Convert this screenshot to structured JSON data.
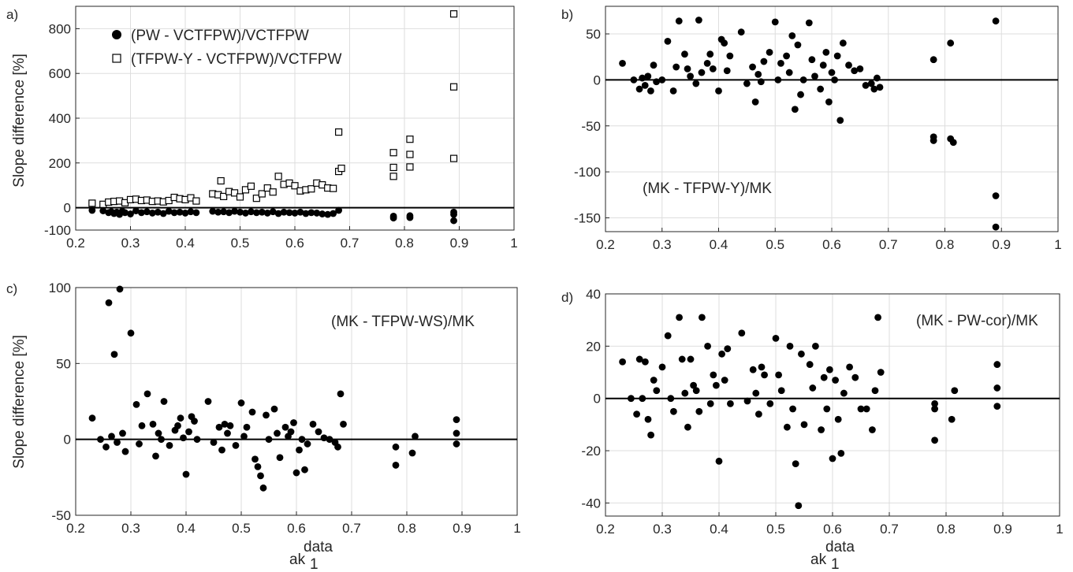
{
  "chart_data": [
    {
      "panel": "a)",
      "type": "scatter",
      "ylabel": "Slope difference [%]",
      "xlabel": "",
      "xlim": [
        0.2,
        1
      ],
      "ylim": [
        -100,
        900
      ],
      "xticks": [
        "0.2",
        "0.3",
        "0.4",
        "0.5",
        "0.6",
        "0.7",
        "0.8",
        "0.9",
        "1"
      ],
      "yticks": [
        "-100",
        "0",
        "200",
        "400",
        "600",
        "800"
      ],
      "grid": true,
      "zero_line": true,
      "legend_position": "top-left",
      "series": [
        {
          "name": "(PW - VCTFPW)/VCTFPW",
          "marker": "filled-circle",
          "x": [
            0.23,
            0.25,
            0.26,
            0.265,
            0.27,
            0.275,
            0.28,
            0.285,
            0.29,
            0.3,
            0.31,
            0.32,
            0.33,
            0.34,
            0.35,
            0.36,
            0.37,
            0.38,
            0.39,
            0.4,
            0.41,
            0.42,
            0.45,
            0.46,
            0.47,
            0.48,
            0.49,
            0.5,
            0.51,
            0.52,
            0.53,
            0.54,
            0.55,
            0.56,
            0.57,
            0.58,
            0.59,
            0.6,
            0.61,
            0.62,
            0.63,
            0.64,
            0.65,
            0.66,
            0.67,
            0.68,
            0.78,
            0.78,
            0.81,
            0.81,
            0.89,
            0.89,
            0.89
          ],
          "y": [
            -12,
            -14,
            -22,
            -18,
            -26,
            -20,
            -30,
            -16,
            -22,
            -28,
            -14,
            -22,
            -18,
            -24,
            -20,
            -26,
            -16,
            -22,
            -20,
            -24,
            -18,
            -22,
            -16,
            -20,
            -18,
            -22,
            -16,
            -20,
            -24,
            -18,
            -22,
            -20,
            -24,
            -18,
            -26,
            -20,
            -22,
            -24,
            -20,
            -26,
            -22,
            -24,
            -28,
            -30,
            -26,
            -12,
            -38,
            -46,
            -36,
            -44,
            -20,
            -30,
            -58
          ]
        },
        {
          "name": "(TFPW-Y - VCTFPW)/VCTFPW",
          "marker": "open-square",
          "x": [
            0.23,
            0.25,
            0.26,
            0.27,
            0.28,
            0.29,
            0.3,
            0.31,
            0.32,
            0.33,
            0.34,
            0.35,
            0.36,
            0.37,
            0.38,
            0.39,
            0.4,
            0.41,
            0.42,
            0.45,
            0.46,
            0.465,
            0.47,
            0.48,
            0.49,
            0.5,
            0.51,
            0.52,
            0.53,
            0.54,
            0.55,
            0.56,
            0.57,
            0.58,
            0.59,
            0.6,
            0.61,
            0.62,
            0.63,
            0.64,
            0.65,
            0.66,
            0.67,
            0.68,
            0.68,
            0.685,
            0.78,
            0.78,
            0.78,
            0.81,
            0.81,
            0.81,
            0.89,
            0.89,
            0.89
          ],
          "y": [
            20,
            15,
            25,
            28,
            30,
            22,
            36,
            38,
            32,
            34,
            28,
            30,
            26,
            32,
            46,
            40,
            36,
            44,
            30,
            62,
            58,
            120,
            50,
            72,
            66,
            48,
            80,
            96,
            42,
            62,
            88,
            70,
            140,
            104,
            110,
            98,
            75,
            80,
            84,
            110,
            102,
            88,
            86,
            338,
            162,
            176,
            246,
            180,
            140,
            306,
            238,
            182,
            866,
            540,
            220
          ]
        }
      ]
    },
    {
      "panel": "b)",
      "type": "scatter",
      "ylabel": "",
      "xlabel": "",
      "xlim": [
        0.2,
        1
      ],
      "ylim": [
        -165,
        80
      ],
      "xticks": [
        "0.2",
        "0.3",
        "0.4",
        "0.5",
        "0.6",
        "0.7",
        "0.8",
        "0.9",
        "1"
      ],
      "yticks": [
        "-150",
        "-100",
        "-50",
        "0",
        "50"
      ],
      "grid": true,
      "zero_line": true,
      "annotation": "(MK - TFPW-Y)/MK",
      "series": [
        {
          "name": "",
          "marker": "filled-circle",
          "x": [
            0.23,
            0.25,
            0.26,
            0.265,
            0.27,
            0.275,
            0.28,
            0.285,
            0.29,
            0.3,
            0.31,
            0.32,
            0.325,
            0.33,
            0.34,
            0.345,
            0.35,
            0.36,
            0.365,
            0.37,
            0.38,
            0.385,
            0.39,
            0.4,
            0.405,
            0.41,
            0.415,
            0.42,
            0.44,
            0.45,
            0.46,
            0.465,
            0.47,
            0.475,
            0.48,
            0.49,
            0.5,
            0.505,
            0.51,
            0.52,
            0.525,
            0.53,
            0.535,
            0.54,
            0.545,
            0.55,
            0.56,
            0.565,
            0.57,
            0.58,
            0.585,
            0.59,
            0.595,
            0.6,
            0.605,
            0.61,
            0.615,
            0.62,
            0.63,
            0.64,
            0.65,
            0.66,
            0.67,
            0.675,
            0.68,
            0.685,
            0.78,
            0.78,
            0.78,
            0.81,
            0.81,
            0.815,
            0.89,
            0.89,
            0.89
          ],
          "y": [
            18,
            0,
            -10,
            2,
            -6,
            4,
            -12,
            16,
            -2,
            0,
            42,
            -12,
            14,
            64,
            28,
            12,
            4,
            -4,
            65,
            8,
            18,
            28,
            12,
            -12,
            44,
            40,
            10,
            26,
            52,
            -4,
            14,
            -24,
            6,
            -2,
            20,
            30,
            63,
            0,
            18,
            26,
            8,
            48,
            -32,
            38,
            -16,
            0,
            62,
            22,
            4,
            -10,
            16,
            30,
            -24,
            8,
            0,
            26,
            -44,
            40,
            16,
            10,
            12,
            -6,
            -4,
            -10,
            2,
            -8,
            22,
            -62,
            -66,
            40,
            -64,
            -68,
            64,
            -126,
            -160
          ]
        }
      ]
    },
    {
      "panel": "c)",
      "type": "scatter",
      "ylabel": "Slope difference [%]",
      "xlabel": "ak 1 data",
      "xlim": [
        0.2,
        1
      ],
      "ylim": [
        -50,
        100
      ],
      "xticks": [
        "0.2",
        "0.3",
        "0.4",
        "0.5",
        "0.6",
        "0.7",
        "0.8",
        "0.9",
        "1"
      ],
      "yticks": [
        "-50",
        "0",
        "50",
        "100"
      ],
      "grid": true,
      "zero_line": true,
      "annotation": "(MK - TFPW-WS)/MK",
      "series": [
        {
          "name": "",
          "marker": "filled-circle",
          "x": [
            0.23,
            0.245,
            0.255,
            0.26,
            0.265,
            0.27,
            0.275,
            0.28,
            0.285,
            0.29,
            0.3,
            0.31,
            0.315,
            0.32,
            0.33,
            0.34,
            0.345,
            0.35,
            0.355,
            0.36,
            0.37,
            0.38,
            0.385,
            0.39,
            0.395,
            0.4,
            0.405,
            0.41,
            0.415,
            0.42,
            0.44,
            0.45,
            0.46,
            0.465,
            0.47,
            0.475,
            0.48,
            0.49,
            0.5,
            0.505,
            0.51,
            0.52,
            0.525,
            0.53,
            0.535,
            0.54,
            0.545,
            0.55,
            0.56,
            0.565,
            0.57,
            0.58,
            0.585,
            0.59,
            0.595,
            0.6,
            0.605,
            0.61,
            0.615,
            0.62,
            0.63,
            0.64,
            0.65,
            0.66,
            0.67,
            0.675,
            0.68,
            0.685,
            0.78,
            0.78,
            0.81,
            0.815,
            0.89,
            0.89,
            0.89
          ],
          "y": [
            14,
            0,
            -5,
            90,
            2,
            56,
            -2,
            99,
            4,
            -8,
            70,
            23,
            -3,
            9,
            30,
            10,
            -11,
            4,
            0,
            25,
            -4,
            6,
            9,
            14,
            1,
            -23,
            5,
            15,
            12,
            0,
            25,
            -2,
            8,
            -7,
            10,
            4,
            9,
            -4,
            24,
            2,
            8,
            18,
            -13,
            -18,
            -24,
            -32,
            16,
            0,
            20,
            4,
            -12,
            8,
            2,
            5,
            11,
            -22,
            -7,
            0,
            -20,
            -3,
            10,
            5,
            1,
            0,
            -2,
            -5,
            30,
            10,
            -17,
            -5,
            -9,
            2,
            13,
            4,
            -3
          ]
        }
      ]
    },
    {
      "panel": "d)",
      "type": "scatter",
      "ylabel": "",
      "xlabel": "ak 1 data",
      "xlim": [
        0.2,
        1
      ],
      "ylim": [
        -45,
        40
      ],
      "xticks": [
        "0.2",
        "0.3",
        "0.4",
        "0.5",
        "0.6",
        "0.7",
        "0.8",
        "0.9",
        "1"
      ],
      "yticks": [
        "-40",
        "-20",
        "0",
        "20",
        "40"
      ],
      "grid": true,
      "zero_line": true,
      "annotation": "(MK - PW-cor)/MK",
      "series": [
        {
          "name": "",
          "marker": "filled-circle",
          "x": [
            0.23,
            0.245,
            0.255,
            0.26,
            0.265,
            0.27,
            0.275,
            0.28,
            0.285,
            0.29,
            0.3,
            0.31,
            0.315,
            0.32,
            0.33,
            0.335,
            0.34,
            0.345,
            0.35,
            0.355,
            0.36,
            0.365,
            0.37,
            0.38,
            0.385,
            0.39,
            0.395,
            0.4,
            0.405,
            0.41,
            0.415,
            0.42,
            0.44,
            0.45,
            0.46,
            0.465,
            0.47,
            0.475,
            0.48,
            0.49,
            0.5,
            0.505,
            0.51,
            0.52,
            0.525,
            0.53,
            0.535,
            0.54,
            0.545,
            0.55,
            0.56,
            0.565,
            0.57,
            0.58,
            0.585,
            0.59,
            0.595,
            0.6,
            0.605,
            0.61,
            0.615,
            0.62,
            0.63,
            0.64,
            0.65,
            0.66,
            0.67,
            0.675,
            0.68,
            0.685,
            0.78,
            0.78,
            0.78,
            0.81,
            0.815,
            0.89,
            0.89,
            0.89
          ],
          "y": [
            14,
            0,
            -6,
            15,
            0,
            14,
            -8,
            -14,
            7,
            3,
            12,
            24,
            0,
            -5,
            31,
            15,
            2,
            -11,
            15,
            5,
            3,
            -5,
            31,
            20,
            -2,
            9,
            5,
            -24,
            17,
            7,
            19,
            -2,
            25,
            -1,
            11,
            2,
            -6,
            12,
            9,
            -2,
            23,
            9,
            3,
            -11,
            20,
            -4,
            -25,
            -41,
            17,
            -10,
            13,
            4,
            20,
            -12,
            8,
            -4,
            11,
            -23,
            7,
            -8,
            -21,
            2,
            12,
            8,
            -4,
            -4,
            -12,
            3,
            31,
            10,
            -2,
            -16,
            -4,
            -8,
            3,
            13,
            4,
            -3
          ]
        }
      ]
    }
  ]
}
